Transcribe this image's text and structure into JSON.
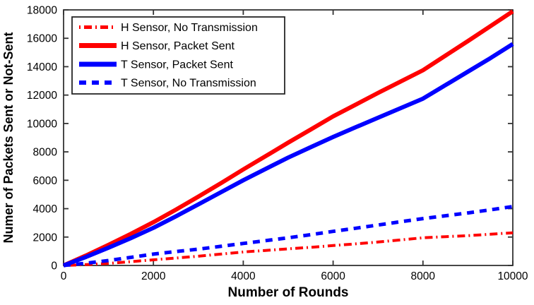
{
  "figure": {
    "background": "#ffffff",
    "frame_color": "#333333",
    "text_color": "#000000"
  },
  "chart_data": {
    "type": "line",
    "title": "",
    "xlabel": "Number of Rounds",
    "ylabel": "Numer of Packets Sent or Not-Sent",
    "xlim": [
      0,
      10000
    ],
    "ylim": [
      0,
      18000
    ],
    "xticks": [
      0,
      2000,
      4000,
      6000,
      8000,
      10000
    ],
    "yticks": [
      0,
      2000,
      4000,
      6000,
      8000,
      10000,
      12000,
      14000,
      16000,
      18000
    ],
    "grid": false,
    "legend_position": "top-left",
    "x": [
      0,
      500,
      1000,
      1500,
      2000,
      2500,
      3000,
      3500,
      4000,
      4500,
      5000,
      5500,
      6000,
      6500,
      7000,
      7500,
      8000,
      8500,
      9000,
      9500,
      10000
    ],
    "series": [
      {
        "name": "H Sensor, No Transmission",
        "color": "#ff0000",
        "style": "dash-dot",
        "width": 4,
        "values": [
          0,
          60,
          150,
          270,
          400,
          520,
          650,
          800,
          950,
          1060,
          1170,
          1280,
          1400,
          1520,
          1650,
          1800,
          1950,
          2030,
          2100,
          2200,
          2300
        ]
      },
      {
        "name": "H Sensor, Packet Sent",
        "color": "#ff0000",
        "style": "solid",
        "width": 6,
        "values": [
          0,
          700,
          1450,
          2230,
          3050,
          3930,
          4850,
          5790,
          6760,
          7700,
          8650,
          9570,
          10500,
          11320,
          12150,
          12950,
          13750,
          14780,
          15800,
          16850,
          17900
        ]
      },
      {
        "name": "T Sensor, Packet Sent",
        "color": "#0000ff",
        "style": "solid",
        "width": 6,
        "values": [
          0,
          600,
          1250,
          1930,
          2650,
          3460,
          4300,
          5150,
          6000,
          6800,
          7600,
          8330,
          9050,
          9730,
          10400,
          11080,
          11750,
          12700,
          13650,
          14600,
          15600
        ]
      },
      {
        "name": "T Sensor, No Transmission",
        "color": "#0000ff",
        "style": "dashed",
        "width": 5,
        "values": [
          0,
          160,
          350,
          570,
          800,
          980,
          1150,
          1350,
          1550,
          1750,
          1950,
          2170,
          2400,
          2620,
          2850,
          3080,
          3300,
          3500,
          3700,
          3920,
          4150
        ]
      }
    ]
  }
}
